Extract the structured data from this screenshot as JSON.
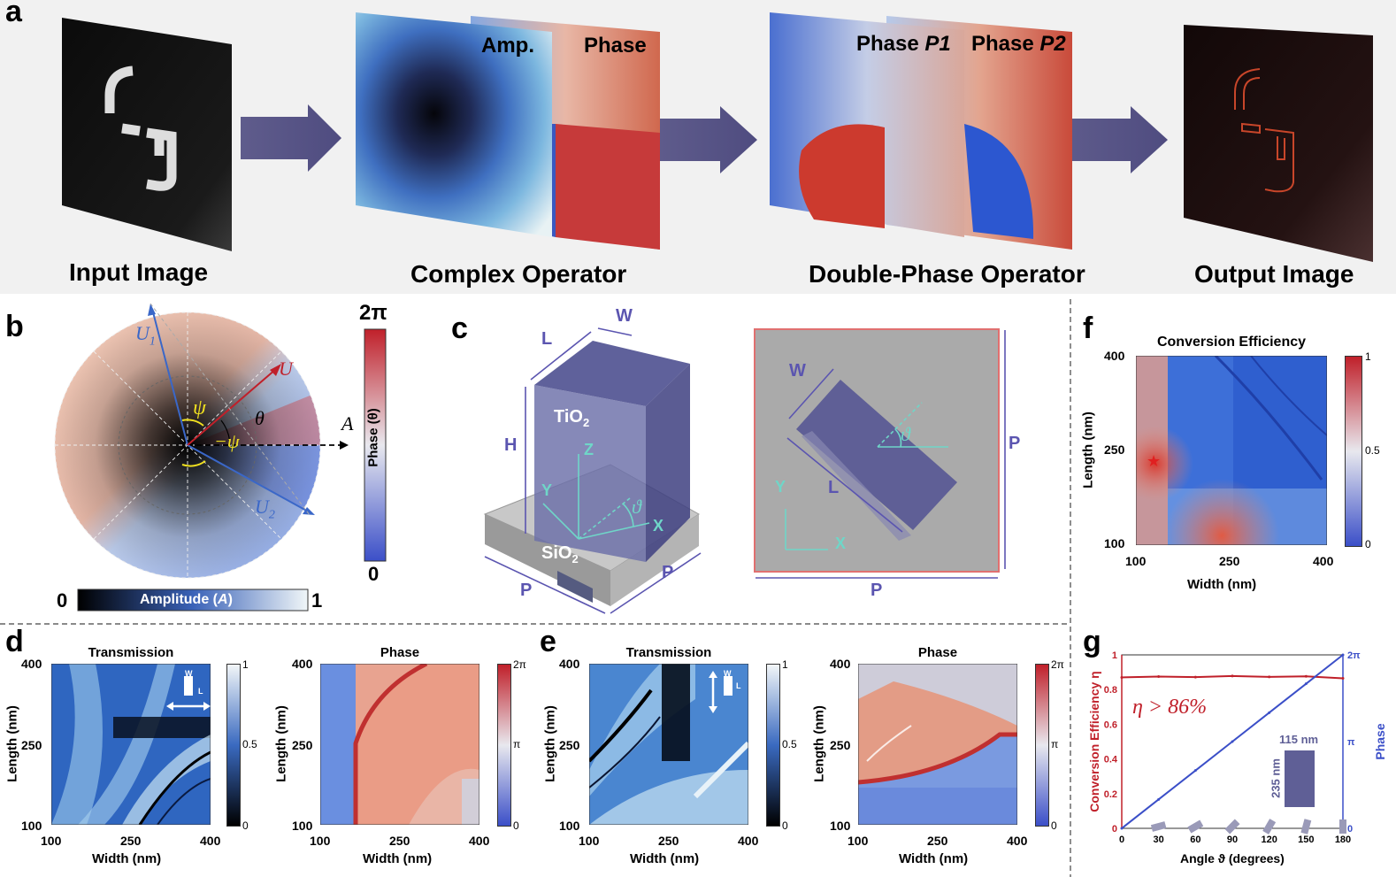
{
  "panels": {
    "a": {
      "letter": "a",
      "captions": [
        "Input Image",
        "Complex Operator",
        "Double-Phase Operator",
        "Output Image"
      ],
      "layer_labels": {
        "amp": "Amp.",
        "phase": "Phase",
        "phase_p1_prefix": "Phase ",
        "p1": "P1",
        "phase_p2_prefix": "Phase ",
        "p2": "P2"
      }
    },
    "b": {
      "letter": "b",
      "labels": {
        "U1": "U",
        "U1_sub": "1",
        "U": "U",
        "U2": "U",
        "U2_sub": "2",
        "psi": "ψ",
        "neg_psi": "−ψ",
        "theta": "θ",
        "A": "A"
      },
      "amp_bar": {
        "min": "0",
        "label_prefix": "Amplitude (",
        "label_var": "A",
        "label_suffix": ")",
        "max": "1"
      },
      "phase_bar": {
        "max": "2π",
        "label": "Phase (θ)",
        "min": "0"
      }
    },
    "c": {
      "letter": "c",
      "labels": {
        "L": "L",
        "W": "W",
        "H": "H",
        "TiO2": "TiO",
        "TiO2_sub": "2",
        "SiO2": "SiO",
        "SiO2_sub": "2",
        "Z": "Z",
        "Y": "Y",
        "X": "X",
        "theta": "ϑ",
        "P": "P"
      }
    },
    "d": {
      "letter": "d",
      "trans_title": "Transmission",
      "phase_title": "Phase",
      "xlabel": "Width (nm)",
      "ylabel": "Length (nm)",
      "xticks": [
        "100",
        "250",
        "400"
      ],
      "yticks": [
        "400",
        "250",
        "100"
      ],
      "trans_cbar": [
        "1",
        "0.5",
        "0"
      ],
      "phase_cbar": [
        "2π",
        "π",
        "0"
      ],
      "inset": {
        "w": "W",
        "l": "L"
      }
    },
    "e": {
      "letter": "e",
      "trans_title": "Transmission",
      "phase_title": "Phase",
      "xlabel": "Width (nm)",
      "ylabel": "Length (nm)",
      "xticks": [
        "100",
        "250",
        "400"
      ],
      "yticks": [
        "400",
        "250",
        "100"
      ],
      "trans_cbar": [
        "1",
        "0.5",
        "0"
      ],
      "phase_cbar": [
        "2π",
        "π",
        "0"
      ],
      "inset": {
        "w": "W",
        "l": "L"
      }
    },
    "f": {
      "letter": "f",
      "title": "Conversion Efficiency",
      "xlabel": "Width (nm)",
      "ylabel": "Length (nm)",
      "xticks": [
        "100",
        "250",
        "400"
      ],
      "yticks": [
        "400",
        "250",
        "100"
      ],
      "cbar": [
        "1",
        "0.5",
        "0"
      ]
    },
    "g": {
      "letter": "g",
      "xlabel": "Angle ϑ (degrees)",
      "ylabel_left": "Conversion Efficiency η",
      "ylabel_right": "Phase",
      "annotation": "η > 86%",
      "inset_w": "115 nm",
      "inset_l": "235 nm",
      "colors": {
        "efficiency": "#c0202a",
        "phase": "#3b4fc8"
      }
    }
  },
  "chart_data": [
    {
      "type": "line",
      "panel": "g",
      "xlabel": "Angle ϑ (degrees)",
      "x": [
        0,
        30,
        60,
        90,
        120,
        150,
        180
      ],
      "xticks": [
        "0",
        "30",
        "60",
        "90",
        "120",
        "150",
        "180"
      ],
      "xlim": [
        0,
        180
      ],
      "y_left_ticks": [
        "0",
        "0.2",
        "0.4",
        "0.6",
        "0.8",
        "1"
      ],
      "y_right_ticks": [
        "0",
        "π",
        "2π"
      ],
      "series": [
        {
          "name": "Conversion Efficiency η",
          "axis": "left",
          "ylim": [
            0,
            1
          ],
          "values": [
            0.87,
            0.875,
            0.872,
            0.878,
            0.873,
            0.876,
            0.865
          ]
        },
        {
          "name": "Phase",
          "axis": "right",
          "ylim": [
            0,
            6.283
          ],
          "values": [
            0,
            1.047,
            2.094,
            3.142,
            4.189,
            5.236,
            6.283
          ]
        }
      ]
    },
    {
      "type": "heatmap",
      "panel": "f",
      "title": "Conversion Efficiency",
      "xlabel": "Width (nm)",
      "ylabel": "Length (nm)",
      "xlim": [
        100,
        400
      ],
      "ylim": [
        100,
        400
      ],
      "marked_point": {
        "width": 115,
        "length": 235
      }
    }
  ]
}
